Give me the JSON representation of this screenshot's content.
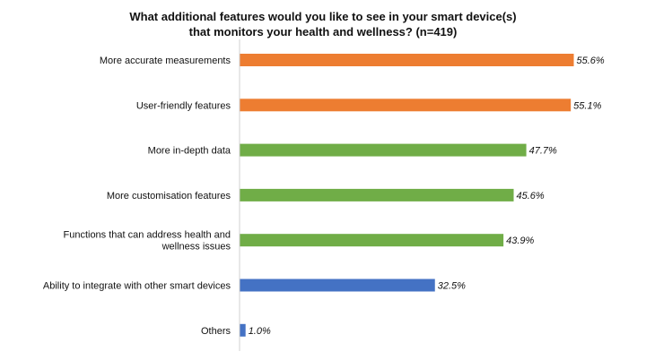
{
  "chart_data": {
    "type": "bar",
    "orientation": "horizontal",
    "title_lines": [
      "What additional features would you like to see in your smart device(s)",
      "that monitors your health and wellness? (n=419)"
    ],
    "categories": [
      [
        "More accurate measurements"
      ],
      [
        "User-friendly features"
      ],
      [
        "More in-depth data"
      ],
      [
        "More customisation features"
      ],
      [
        "Functions that can address health and",
        "wellness issues"
      ],
      [
        "Ability to integrate with other smart devices"
      ],
      [
        "Others"
      ]
    ],
    "values": [
      55.6,
      55.1,
      47.7,
      45.6,
      43.9,
      32.5,
      1.0
    ],
    "value_labels": [
      "55.6%",
      "55.1%",
      "47.7%",
      "45.6%",
      "43.9%",
      "32.5%",
      "1.0%"
    ],
    "bar_colors": [
      "#ED7D31",
      "#ED7D31",
      "#70AD47",
      "#70AD47",
      "#70AD47",
      "#4472C4",
      "#4472C4"
    ],
    "xlim": [
      0,
      60
    ],
    "grid": false,
    "legend": "none"
  }
}
